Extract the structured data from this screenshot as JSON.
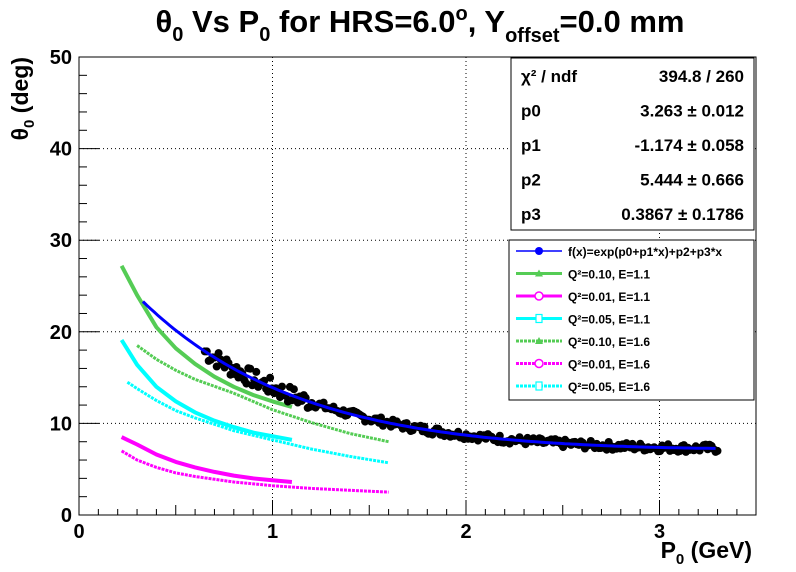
{
  "chart_data": {
    "type": "scatter",
    "title": {
      "theta": "θ",
      "sub0": "0",
      "vs": " Vs P",
      "sub1": "0",
      "for": " for HRS=6.0",
      "deg": "o",
      "y": ", Y",
      "offset": "offset",
      "val": "=0.0 mm"
    },
    "xlabel": {
      "p": "P",
      "sub": "0",
      "unit": " (GeV)"
    },
    "ylabel": {
      "theta": "θ",
      "sub": "0",
      "unit": " (deg)"
    },
    "xlim": [
      0,
      3.5
    ],
    "ylim": [
      0,
      50
    ],
    "x_ticks": [
      "0",
      "1",
      "2",
      "3"
    ],
    "y_ticks": [
      "0",
      "10",
      "20",
      "30",
      "40",
      "50"
    ],
    "grid": true,
    "stats": [
      {
        "label": "χ² / ndf",
        "value": "394.8 / 260"
      },
      {
        "label": "p0",
        "value": "3.263 ± 0.012"
      },
      {
        "label": "p1",
        "value": "-1.174 ± 0.058"
      },
      {
        "label": "p2",
        "value": "5.444 ± 0.666"
      },
      {
        "label": "p3",
        "value": "0.3867 ± 0.1786"
      }
    ],
    "legend_placement": "right",
    "legend": [
      {
        "text": "f(x)=exp(p0+p1*x)+p2+p3*x",
        "color": "#0000ff",
        "marker": "circle"
      },
      {
        "text": "Q²=0.10, E=1.1",
        "color": "#55cc55",
        "marker": "triangle"
      },
      {
        "text": "Q²=0.01, E=1.1",
        "color": "#ff00ff",
        "marker": "open-circle"
      },
      {
        "text": "Q²=0.05, E=1.1",
        "color": "#00ffff",
        "marker": "cross"
      },
      {
        "text": "Q²=0.10, E=1.6",
        "color": "#55cc55",
        "marker": "triangle"
      },
      {
        "text": "Q²=0.01, E=1.6",
        "color": "#ff00ff",
        "marker": "open-circle"
      },
      {
        "text": "Q²=0.05, E=1.6",
        "color": "#00ffff",
        "marker": "cross"
      }
    ],
    "fit": {
      "p0": 3.263,
      "p1": -1.174,
      "p2": 5.444,
      "p3": 0.3867,
      "x_range": [
        0.33,
        3.3
      ],
      "color": "#0000ff"
    },
    "data_points": {
      "x_range": [
        0.65,
        3.3
      ],
      "count": 260,
      "color": "#000000"
    },
    "series": [
      {
        "color": "#55cc55",
        "x": [
          0.22,
          0.3,
          0.4,
          0.5,
          0.6,
          0.7,
          0.8,
          0.9,
          1.0,
          1.1
        ],
        "y": [
          27.2,
          24.0,
          20.5,
          18.2,
          16.5,
          15.1,
          14.0,
          13.1,
          12.4,
          11.8
        ],
        "dashed": false
      },
      {
        "color": "#ff00ff",
        "x": [
          0.22,
          0.3,
          0.4,
          0.5,
          0.6,
          0.7,
          0.8,
          0.9,
          1.0,
          1.1
        ],
        "y": [
          8.5,
          7.7,
          6.6,
          5.8,
          5.2,
          4.7,
          4.3,
          4.0,
          3.8,
          3.6
        ],
        "dashed": false
      },
      {
        "color": "#00ffff",
        "x": [
          0.22,
          0.3,
          0.4,
          0.5,
          0.6,
          0.7,
          0.8,
          0.9,
          1.0,
          1.1
        ],
        "y": [
          19.1,
          16.4,
          14.0,
          12.4,
          11.2,
          10.3,
          9.6,
          9.0,
          8.6,
          8.2
        ],
        "dashed": false
      },
      {
        "color": "#55cc55",
        "x": [
          0.3,
          0.4,
          0.5,
          0.6,
          0.8,
          1.0,
          1.2,
          1.4,
          1.6
        ],
        "y": [
          18.5,
          17.0,
          15.8,
          14.8,
          13.3,
          11.5,
          10.1,
          8.9,
          8.0
        ],
        "dashed": true
      },
      {
        "color": "#ff00ff",
        "x": [
          0.22,
          0.3,
          0.4,
          0.5,
          0.6,
          0.8,
          1.0,
          1.2,
          1.4,
          1.6
        ],
        "y": [
          7.0,
          6.0,
          5.2,
          4.6,
          4.2,
          3.6,
          3.2,
          2.9,
          2.7,
          2.5
        ],
        "dashed": true
      },
      {
        "color": "#00ffff",
        "x": [
          0.25,
          0.3,
          0.4,
          0.5,
          0.6,
          0.8,
          1.0,
          1.2,
          1.4,
          1.6
        ],
        "y": [
          14.5,
          13.8,
          12.5,
          11.4,
          10.6,
          9.2,
          8.2,
          7.2,
          6.4,
          5.7
        ],
        "dashed": true
      }
    ]
  }
}
